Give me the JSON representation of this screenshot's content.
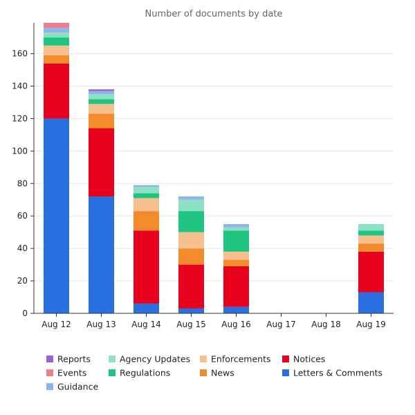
{
  "chart_data": {
    "type": "bar",
    "stacked": true,
    "title": "Number of documents by date",
    "categories": [
      "Aug 12",
      "Aug 13",
      "Aug 14",
      "Aug 15",
      "Aug 16",
      "Aug 17",
      "Aug 18",
      "Aug 19"
    ],
    "ylim": [
      0,
      179
    ],
    "yticks": [
      0,
      20,
      40,
      60,
      80,
      100,
      120,
      140,
      160
    ],
    "grid": true,
    "legend_position": "bottom",
    "series": [
      {
        "name": "Letters & Comments",
        "color": "#2a6fdf",
        "values": [
          120,
          72,
          6,
          3,
          4,
          0,
          0,
          13
        ]
      },
      {
        "name": "Notices",
        "color": "#e8001f",
        "values": [
          34,
          42,
          45,
          27,
          25,
          0,
          0,
          25
        ]
      },
      {
        "name": "News",
        "color": "#f28b2c",
        "values": [
          5,
          9,
          12,
          10,
          4,
          0,
          0,
          5
        ]
      },
      {
        "name": "Enforcements",
        "color": "#f7c08f",
        "values": [
          6,
          6,
          8,
          10,
          5,
          0,
          0,
          5
        ]
      },
      {
        "name": "Regulations",
        "color": "#1ec47f",
        "values": [
          5,
          3,
          3,
          13,
          13,
          0,
          0,
          3
        ]
      },
      {
        "name": "Agency Updates",
        "color": "#8de0c4",
        "values": [
          3,
          3,
          4,
          7,
          2,
          0,
          0,
          4
        ]
      },
      {
        "name": "Guidance",
        "color": "#8fb4ea",
        "values": [
          3,
          2,
          1,
          2,
          2,
          0,
          0,
          0
        ]
      },
      {
        "name": "Events",
        "color": "#f07f8b",
        "values": [
          3,
          0,
          0,
          0,
          0,
          0,
          0,
          0
        ]
      },
      {
        "name": "Reports",
        "color": "#9a62cc",
        "values": [
          0,
          1,
          0,
          0,
          0,
          0,
          0,
          0
        ]
      }
    ],
    "legend_order": [
      "Reports",
      "Agency Updates",
      "Enforcements",
      "Notices",
      "Events",
      "Regulations",
      "News",
      "Letters & Comments",
      "Guidance"
    ]
  }
}
